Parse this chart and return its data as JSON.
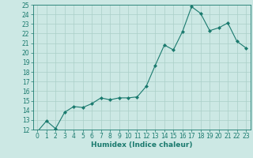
{
  "x": [
    0,
    1,
    2,
    3,
    4,
    5,
    6,
    7,
    8,
    9,
    10,
    11,
    12,
    13,
    14,
    15,
    16,
    17,
    18,
    19,
    20,
    21,
    22,
    23
  ],
  "y": [
    11.8,
    12.9,
    12.1,
    13.8,
    14.4,
    14.3,
    14.7,
    15.3,
    15.1,
    15.3,
    15.3,
    15.4,
    16.5,
    18.7,
    20.8,
    20.3,
    22.2,
    24.8,
    24.1,
    22.3,
    22.6,
    23.1,
    21.2,
    20.5
  ],
  "line_color": "#1a7a6e",
  "marker": "D",
  "marker_size": 2,
  "bg_color": "#cce8e4",
  "grid_color": "#aacfc8",
  "xlabel": "Humidex (Indice chaleur)",
  "xlim": [
    -0.5,
    23.5
  ],
  "ylim": [
    12,
    25
  ],
  "xticks": [
    0,
    1,
    2,
    3,
    4,
    5,
    6,
    7,
    8,
    9,
    10,
    11,
    12,
    13,
    14,
    15,
    16,
    17,
    18,
    19,
    20,
    21,
    22,
    23
  ],
  "yticks": [
    12,
    13,
    14,
    15,
    16,
    17,
    18,
    19,
    20,
    21,
    22,
    23,
    24,
    25
  ],
  "tick_label_size": 5.5,
  "xlabel_fontsize": 6.5,
  "xlabel_fontweight": "bold",
  "axis_color": "#1a7a6e",
  "linewidth": 0.8
}
